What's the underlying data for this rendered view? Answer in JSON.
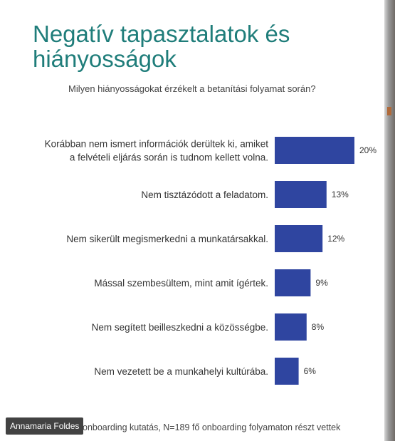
{
  "slide": {
    "title_line1": "Negatív tapasztalatok és",
    "title_line2": "hiányosságok",
    "subtitle": "Milyen hiányosságokat érzékelt a betanítási folyamat során?",
    "footer": "onboarding kutatás, N=189 fő onboarding folyamaton részt vettek"
  },
  "presenter": {
    "name": "Annamaria Foldes"
  },
  "colors": {
    "title": "#1f7d7a",
    "bar": "#2f45a0",
    "text": "#333333"
  },
  "chart_data": {
    "type": "bar",
    "orientation": "horizontal",
    "categories": [
      [
        "Korábban nem ismert információk derültek ki, amiket",
        "a felvételi eljárás során is tudnom kellett volna."
      ],
      [
        "Nem tisztázódott a feladatom."
      ],
      [
        "Nem sikerült megismerkedni a munkatársakkal."
      ],
      [
        "Mással szembesültem, mint amit ígértek."
      ],
      [
        "Nem segített beilleszkedni a közösségbe."
      ],
      [
        "Nem vezetett be a munkahelyi kultúrába."
      ]
    ],
    "values": [
      20,
      13,
      12,
      9,
      8,
      6
    ],
    "value_labels": [
      "20%",
      "13%",
      "12%",
      "9%",
      "8%",
      "6%"
    ],
    "unit": "%",
    "xlim": [
      0,
      20
    ],
    "grid": false,
    "legend": "none"
  }
}
